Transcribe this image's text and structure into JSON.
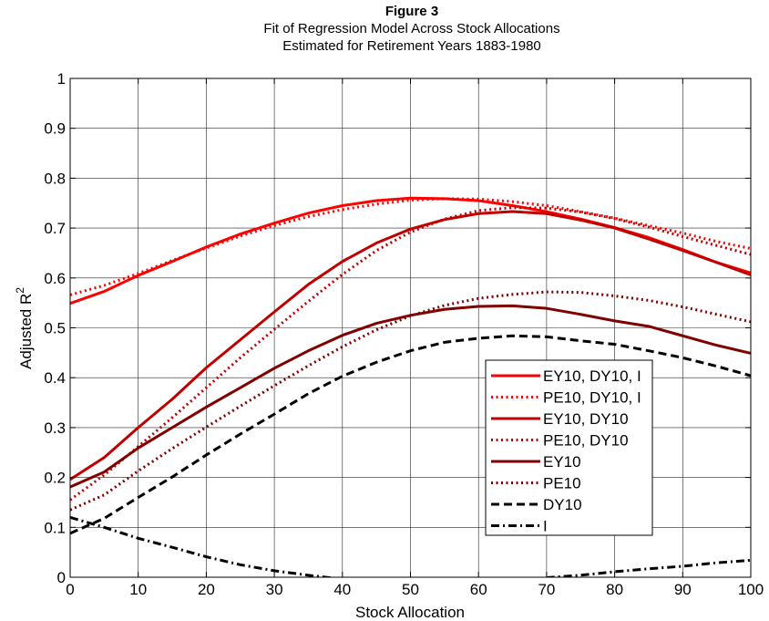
{
  "chart_data": {
    "type": "line",
    "title": "Figure 3",
    "subtitle_lines": [
      "Fit of Regression Model Across Stock Allocations",
      "Estimated for Retirement Years 1883-1980"
    ],
    "xlabel": "Stock Allocation",
    "ylabel": "Adjusted R",
    "ylabel_superscript": "2",
    "xlim": [
      0,
      100
    ],
    "ylim": [
      0,
      1
    ],
    "xticks": [
      "0",
      "10",
      "20",
      "30",
      "40",
      "50",
      "60",
      "70",
      "80",
      "90",
      "100"
    ],
    "yticks": [
      "0",
      "0.1",
      "0.2",
      "0.3",
      "0.4",
      "0.5",
      "0.6",
      "0.7",
      "0.8",
      "0.9",
      "1"
    ],
    "grid": true,
    "legend_position": "lower-right",
    "x": [
      0,
      5,
      10,
      15,
      20,
      25,
      30,
      35,
      40,
      45,
      50,
      55,
      60,
      65,
      70,
      75,
      80,
      85,
      90,
      95,
      100
    ],
    "series": [
      {
        "name": "EY10, DY10, I",
        "color": "#ff0000",
        "dash": "solid",
        "values": [
          0.549,
          0.573,
          0.605,
          0.633,
          0.662,
          0.688,
          0.71,
          0.73,
          0.745,
          0.755,
          0.76,
          0.759,
          0.755,
          0.745,
          0.733,
          0.718,
          0.701,
          0.681,
          0.657,
          0.631,
          0.61
        ]
      },
      {
        "name": "PE10, DY10, I",
        "color": "#ff0000",
        "dash": "dotted",
        "values": [
          0.566,
          0.585,
          0.609,
          0.635,
          0.66,
          0.684,
          0.705,
          0.723,
          0.737,
          0.748,
          0.756,
          0.759,
          0.758,
          0.753,
          0.745,
          0.733,
          0.72,
          0.705,
          0.69,
          0.673,
          0.659
        ]
      },
      {
        "name": "EY10, DY10",
        "color": "#c00000",
        "dash": "solid",
        "values": [
          0.196,
          0.24,
          0.3,
          0.357,
          0.42,
          0.476,
          0.532,
          0.587,
          0.633,
          0.67,
          0.698,
          0.717,
          0.729,
          0.733,
          0.729,
          0.716,
          0.7,
          0.678,
          0.655,
          0.631,
          0.606
        ]
      },
      {
        "name": "PE10, DY10",
        "color": "#c00000",
        "dash": "dotted",
        "values": [
          0.155,
          0.205,
          0.262,
          0.32,
          0.38,
          0.44,
          0.497,
          0.553,
          0.607,
          0.655,
          0.692,
          0.718,
          0.735,
          0.741,
          0.74,
          0.732,
          0.719,
          0.702,
          0.683,
          0.665,
          0.647
        ]
      },
      {
        "name": "EY10",
        "color": "#800000",
        "dash": "solid",
        "values": [
          0.181,
          0.211,
          0.259,
          0.3,
          0.341,
          0.38,
          0.419,
          0.454,
          0.485,
          0.509,
          0.525,
          0.537,
          0.543,
          0.544,
          0.539,
          0.527,
          0.514,
          0.503,
          0.484,
          0.465,
          0.449
        ]
      },
      {
        "name": "PE10",
        "color": "#800000",
        "dash": "dotted",
        "values": [
          0.135,
          0.165,
          0.213,
          0.258,
          0.301,
          0.343,
          0.384,
          0.424,
          0.462,
          0.496,
          0.524,
          0.545,
          0.559,
          0.567,
          0.572,
          0.571,
          0.564,
          0.555,
          0.542,
          0.527,
          0.512
        ]
      },
      {
        "name": "DY10",
        "color": "#000000",
        "dash": "dashed",
        "values": [
          0.088,
          0.118,
          0.16,
          0.201,
          0.245,
          0.287,
          0.327,
          0.368,
          0.403,
          0.431,
          0.454,
          0.471,
          0.479,
          0.484,
          0.482,
          0.474,
          0.467,
          0.454,
          0.44,
          0.423,
          0.404
        ]
      },
      {
        "name": "I",
        "color": "#000000",
        "dash": "dashdot",
        "values": [
          0.12,
          0.1,
          0.078,
          0.06,
          0.041,
          0.025,
          0.013,
          0.004,
          -0.004,
          -0.011,
          -0.016,
          -0.019,
          -0.019,
          -0.011,
          -0.001,
          0.004,
          0.011,
          0.017,
          0.022,
          0.029,
          0.034
        ]
      }
    ]
  }
}
